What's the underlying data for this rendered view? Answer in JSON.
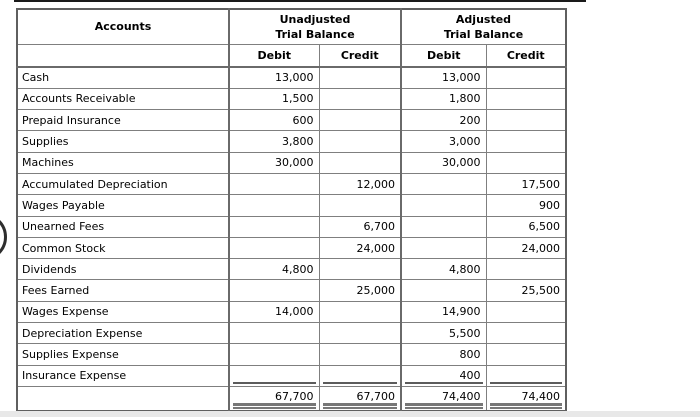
{
  "page": {
    "background": "#ffffff",
    "top_rule_color": "#1a1a1a",
    "bottom_strip_color": "#e8e8e8",
    "border_color": "#7f7f7f"
  },
  "table": {
    "header": {
      "accounts": "Accounts",
      "groups": [
        {
          "line1": "Unadjusted",
          "line2": "Trial Balance"
        },
        {
          "line1": "Adjusted",
          "line2": "Trial Balance"
        }
      ],
      "subheaders": [
        "Debit",
        "Credit",
        "Debit",
        "Credit"
      ]
    },
    "rows": [
      {
        "account": "Cash",
        "unadjusted_debit": "13,000",
        "unadjusted_credit": "",
        "adjusted_debit": "13,000",
        "adjusted_credit": ""
      },
      {
        "account": "Accounts Receivable",
        "unadjusted_debit": "1,500",
        "unadjusted_credit": "",
        "adjusted_debit": "1,800",
        "adjusted_credit": ""
      },
      {
        "account": "Prepaid Insurance",
        "unadjusted_debit": "600",
        "unadjusted_credit": "",
        "adjusted_debit": "200",
        "adjusted_credit": ""
      },
      {
        "account": "Supplies",
        "unadjusted_debit": "3,800",
        "unadjusted_credit": "",
        "adjusted_debit": "3,000",
        "adjusted_credit": ""
      },
      {
        "account": "Machines",
        "unadjusted_debit": "30,000",
        "unadjusted_credit": "",
        "adjusted_debit": "30,000",
        "adjusted_credit": ""
      },
      {
        "account": "Accumulated Depreciation",
        "unadjusted_debit": "",
        "unadjusted_credit": "12,000",
        "adjusted_debit": "",
        "adjusted_credit": "17,500"
      },
      {
        "account": "Wages Payable",
        "unadjusted_debit": "",
        "unadjusted_credit": "",
        "adjusted_debit": "",
        "adjusted_credit": "900"
      },
      {
        "account": "Unearned Fees",
        "unadjusted_debit": "",
        "unadjusted_credit": "6,700",
        "adjusted_debit": "",
        "adjusted_credit": "6,500"
      },
      {
        "account": "Common Stock",
        "unadjusted_debit": "",
        "unadjusted_credit": "24,000",
        "adjusted_debit": "",
        "adjusted_credit": "24,000"
      },
      {
        "account": "Dividends",
        "unadjusted_debit": "4,800",
        "unadjusted_credit": "",
        "adjusted_debit": "4,800",
        "adjusted_credit": ""
      },
      {
        "account": "Fees Earned",
        "unadjusted_debit": "",
        "unadjusted_credit": "25,000",
        "adjusted_debit": "",
        "adjusted_credit": "25,500"
      },
      {
        "account": "Wages Expense",
        "unadjusted_debit": "14,000",
        "unadjusted_credit": "",
        "adjusted_debit": "14,900",
        "adjusted_credit": ""
      },
      {
        "account": "Depreciation Expense",
        "unadjusted_debit": "",
        "unadjusted_credit": "",
        "adjusted_debit": "5,500",
        "adjusted_credit": ""
      },
      {
        "account": "Supplies Expense",
        "unadjusted_debit": "",
        "unadjusted_credit": "",
        "adjusted_debit": "800",
        "adjusted_credit": ""
      },
      {
        "account": "Insurance Expense",
        "unadjusted_debit": "",
        "unadjusted_credit": "",
        "adjusted_debit": "400",
        "adjusted_credit": "",
        "underline": "single"
      },
      {
        "account": "",
        "unadjusted_debit": "67,700",
        "unadjusted_credit": "67,700",
        "adjusted_debit": "74,400",
        "adjusted_credit": "74,400",
        "underline": "double"
      }
    ]
  }
}
